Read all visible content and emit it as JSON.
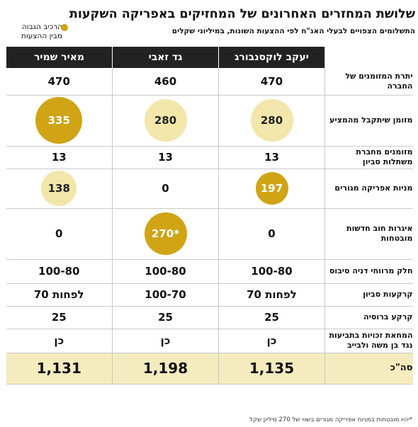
{
  "header": {
    "title": "שלושת המחזרים האחרונים של המחזיקים באפריקה השקעות",
    "subtitle": "התשלומים הצפויים לבעלי האג\"ח לפי ההצעות השונות, במיליוני שקלים",
    "legend_line1": "הרכיב הגבוה",
    "legend_line2": "מבין ההצעות",
    "legend_color": "#d0a414"
  },
  "columns": [
    "יעקב לוקסנבורג",
    "גד זאבי",
    "מאיר שמיר"
  ],
  "rows": [
    {
      "label": "יתרת המזומנים של החברה",
      "values": [
        "470",
        "460",
        "470"
      ],
      "bubbles": [
        null,
        null,
        null
      ]
    },
    {
      "label": "מזומן שיתקבל מהמציע",
      "values": [
        "280",
        "280",
        "335"
      ],
      "bubbles": [
        "light",
        "light",
        "dark"
      ]
    },
    {
      "label": "מזומנים מחברת משתלות סביון",
      "values": [
        "13",
        "13",
        "13"
      ],
      "bubbles": [
        null,
        null,
        null
      ]
    },
    {
      "label": "מניות אפריקה מגורים",
      "values": [
        "197",
        "0",
        "138"
      ],
      "bubbles": [
        "dark",
        null,
        "light"
      ]
    },
    {
      "label": "איגרות חוב חדשות מובטחות",
      "values": [
        "0",
        "*270",
        "0"
      ],
      "bubbles": [
        null,
        "dark",
        null
      ]
    },
    {
      "label": "חלק מרווחי דניה סיבוס",
      "values": [
        "100-80",
        "100-80",
        "100-80"
      ],
      "bubbles": [
        null,
        null,
        null
      ]
    },
    {
      "label": "קרקעות סביון",
      "values": [
        "לפחות 70",
        "100-70",
        "לפחות 70"
      ],
      "bubbles": [
        null,
        null,
        null
      ]
    },
    {
      "label": "קרקע ברוסיה",
      "values": [
        "25",
        "25",
        "25"
      ],
      "bubbles": [
        null,
        null,
        null
      ]
    },
    {
      "label": "המחאת זכויות בתביעות נגד בן משה ולבייב",
      "values": [
        "כן",
        "כן",
        "כן"
      ],
      "bubbles": [
        null,
        null,
        null
      ]
    }
  ],
  "total": {
    "label": "סה\"כ",
    "values": [
      "1,135",
      "1,198",
      "1,131"
    ]
  },
  "footnote": "*יהיו מובטחות במניות אפריקה מגורים בשווי של 270 מיליון שקל"
}
